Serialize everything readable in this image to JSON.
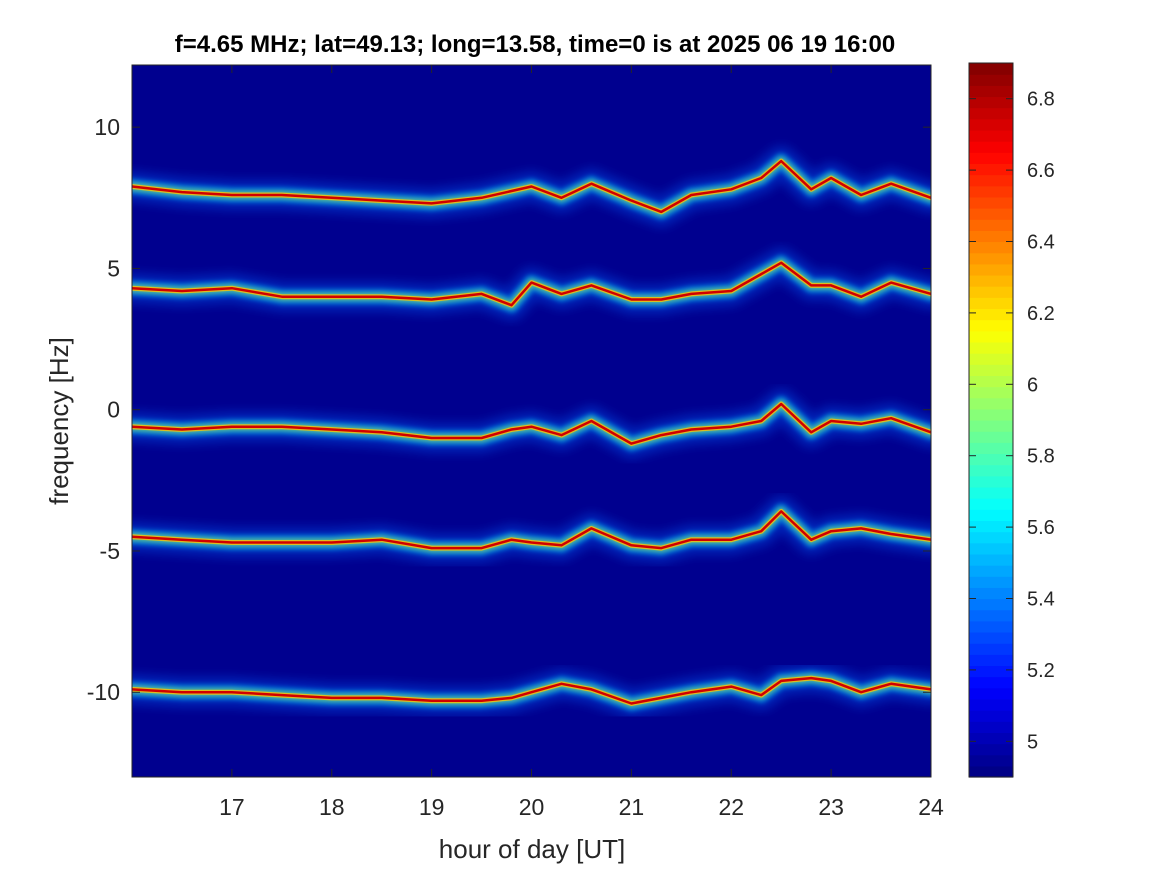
{
  "chart_data": {
    "type": "heatmap",
    "title": "f=4.65 MHz;  lat=49.13; long=13.58, time=0 is at 2025 06 19 16:00",
    "xlabel": "hour of day [UT]",
    "ylabel": "frequency [Hz]",
    "xlim": [
      16,
      24
    ],
    "ylim": [
      -13,
      12.2
    ],
    "xticks": [
      17,
      18,
      19,
      20,
      21,
      22,
      23,
      24
    ],
    "xtick_labels": [
      "17",
      "18",
      "19",
      "20",
      "21",
      "22",
      "23",
      "24"
    ],
    "yticks": [
      10,
      5,
      0,
      -5,
      -10
    ],
    "ytick_labels": [
      "10",
      "5",
      "0",
      "-5",
      "-10"
    ],
    "colormap": "jet",
    "background_color": "#00008f",
    "colorbar": {
      "range": [
        4.9,
        6.9
      ],
      "ticks": [
        5,
        5.2,
        5.4,
        5.6,
        5.8,
        6,
        6.2,
        6.4,
        6.6,
        6.8
      ],
      "tick_labels": [
        "5",
        "5.2",
        "5.4",
        "5.6",
        "5.8",
        "6",
        "6.2",
        "6.4",
        "6.6",
        "6.8"
      ]
    },
    "traces": [
      {
        "x": [
          16.0,
          16.5,
          17.0,
          17.5,
          18.0,
          18.5,
          19.0,
          19.5,
          20.0,
          20.3,
          20.6,
          21.0,
          21.3,
          21.6,
          22.0,
          22.3,
          22.5,
          22.8,
          23.0,
          23.3,
          23.6,
          24.0
        ],
        "y": [
          7.9,
          7.7,
          7.6,
          7.6,
          7.5,
          7.4,
          7.3,
          7.5,
          7.9,
          7.5,
          8.0,
          7.4,
          7.0,
          7.6,
          7.8,
          8.2,
          8.8,
          7.8,
          8.2,
          7.6,
          8.0,
          7.5
        ]
      },
      {
        "x": [
          16.0,
          16.5,
          17.0,
          17.5,
          18.0,
          18.5,
          19.0,
          19.5,
          19.8,
          20.0,
          20.3,
          20.6,
          21.0,
          21.3,
          21.6,
          22.0,
          22.3,
          22.5,
          22.8,
          23.0,
          23.3,
          23.6,
          24.0
        ],
        "y": [
          4.3,
          4.2,
          4.3,
          4.0,
          4.0,
          4.0,
          3.9,
          4.1,
          3.7,
          4.5,
          4.1,
          4.4,
          3.9,
          3.9,
          4.1,
          4.2,
          4.8,
          5.2,
          4.4,
          4.4,
          4.0,
          4.5,
          4.1
        ]
      },
      {
        "x": [
          16.0,
          16.5,
          17.0,
          17.5,
          18.0,
          18.5,
          19.0,
          19.5,
          19.8,
          20.0,
          20.3,
          20.6,
          21.0,
          21.3,
          21.6,
          22.0,
          22.3,
          22.5,
          22.8,
          23.0,
          23.3,
          23.6,
          24.0
        ],
        "y": [
          -0.6,
          -0.7,
          -0.6,
          -0.6,
          -0.7,
          -0.8,
          -1.0,
          -1.0,
          -0.7,
          -0.6,
          -0.9,
          -0.4,
          -1.2,
          -0.9,
          -0.7,
          -0.6,
          -0.4,
          0.2,
          -0.8,
          -0.4,
          -0.5,
          -0.3,
          -0.8
        ]
      },
      {
        "x": [
          16.0,
          16.5,
          17.0,
          17.5,
          18.0,
          18.5,
          19.0,
          19.5,
          19.8,
          20.0,
          20.3,
          20.6,
          21.0,
          21.3,
          21.6,
          22.0,
          22.3,
          22.5,
          22.8,
          23.0,
          23.3,
          23.6,
          24.0
        ],
        "y": [
          -4.5,
          -4.6,
          -4.7,
          -4.7,
          -4.7,
          -4.6,
          -4.9,
          -4.9,
          -4.6,
          -4.7,
          -4.8,
          -4.2,
          -4.8,
          -4.9,
          -4.6,
          -4.6,
          -4.3,
          -3.6,
          -4.6,
          -4.3,
          -4.2,
          -4.4,
          -4.6
        ]
      },
      {
        "x": [
          16.0,
          16.5,
          17.0,
          17.5,
          18.0,
          18.5,
          19.0,
          19.5,
          19.8,
          20.0,
          20.3,
          20.6,
          21.0,
          21.3,
          21.6,
          22.0,
          22.3,
          22.5,
          22.8,
          23.0,
          23.3,
          23.6,
          24.0
        ],
        "y": [
          -9.9,
          -10.0,
          -10.0,
          -10.1,
          -10.2,
          -10.2,
          -10.3,
          -10.3,
          -10.2,
          -10.0,
          -9.7,
          -9.9,
          -10.4,
          -10.2,
          -10.0,
          -9.8,
          -10.1,
          -9.6,
          -9.5,
          -9.6,
          -10.0,
          -9.7,
          -9.9
        ]
      }
    ]
  }
}
